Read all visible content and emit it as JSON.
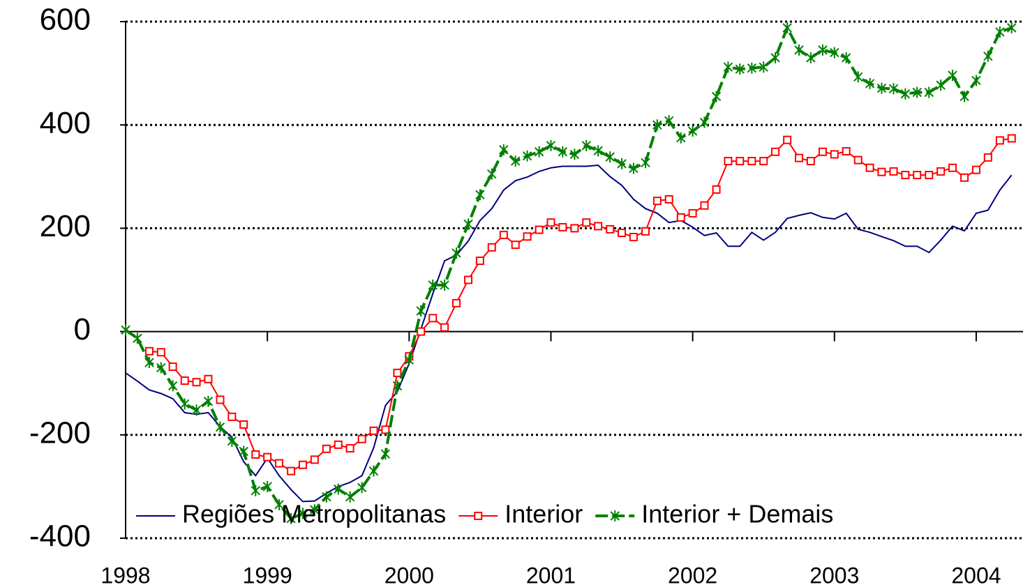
{
  "chart_data": {
    "type": "line",
    "x": [
      1998,
      1998.083,
      1998.167,
      1998.25,
      1998.333,
      1998.417,
      1998.5,
      1998.583,
      1998.667,
      1998.75,
      1998.833,
      1998.917,
      1999,
      1999.083,
      1999.167,
      1999.25,
      1999.333,
      1999.417,
      1999.5,
      1999.583,
      1999.667,
      1999.75,
      1999.833,
      1999.917,
      2000,
      2000.083,
      2000.167,
      2000.25,
      2000.333,
      2000.417,
      2000.5,
      2000.583,
      2000.667,
      2000.75,
      2000.833,
      2000.917,
      2001,
      2001.083,
      2001.167,
      2001.25,
      2001.333,
      2001.417,
      2001.5,
      2001.583,
      2001.667,
      2001.75,
      2001.833,
      2001.917,
      2002,
      2002.083,
      2002.167,
      2002.25,
      2002.333,
      2002.417,
      2002.5,
      2002.583,
      2002.667,
      2002.75,
      2002.833,
      2002.917,
      2003,
      2003.083,
      2003.167,
      2003.25,
      2003.333,
      2003.417,
      2003.5,
      2003.583,
      2003.667,
      2003.75,
      2003.833,
      2003.917,
      2004,
      2004.083,
      2004.167,
      2004.25
    ],
    "series": [
      {
        "name": "Regiões Metropolitanas",
        "color": "#000080",
        "style": "solid",
        "marker": "none",
        "values": [
          -80,
          -96,
          -113,
          -120,
          -130,
          -157,
          -160,
          -157,
          -184,
          -205,
          -252,
          -279,
          -245,
          -279,
          -306,
          -329,
          -328,
          -313,
          -300,
          -292,
          -279,
          -225,
          -143,
          -116,
          -62,
          5,
          73,
          137,
          148,
          175,
          215,
          238,
          274,
          292,
          299,
          310,
          317,
          320,
          320,
          320,
          322,
          300,
          283,
          256,
          238,
          229,
          211,
          215,
          202,
          186,
          191,
          165,
          165,
          192,
          177,
          192,
          219,
          225,
          230,
          221,
          218,
          229,
          198,
          192,
          184,
          176,
          165,
          165,
          153,
          177,
          204,
          195,
          229,
          235,
          274,
          303
        ]
      },
      {
        "name": "Interior",
        "color": "#ff0000",
        "style": "solid",
        "marker": "square",
        "values": [
          null,
          null,
          -38,
          -40,
          -68,
          -95,
          -98,
          -92,
          -132,
          -165,
          -180,
          -238,
          -243,
          -255,
          -270,
          -258,
          -248,
          -227,
          -219,
          -226,
          -208,
          -192,
          -190,
          -80,
          -48,
          0,
          26,
          8,
          55,
          100,
          137,
          163,
          187,
          168,
          184,
          197,
          211,
          202,
          200,
          211,
          204,
          198,
          191,
          183,
          194,
          253,
          256,
          221,
          229,
          244,
          275,
          330,
          330,
          330,
          330,
          348,
          371,
          336,
          330,
          348,
          343,
          349,
          332,
          317,
          309,
          310,
          303,
          303,
          303,
          310,
          317,
          298,
          313,
          337,
          370,
          374
        ]
      },
      {
        "name": "Interior + Demais",
        "color": "#008000",
        "style": "dashed",
        "marker": "star",
        "values": [
          3,
          -13,
          -60,
          -70,
          -105,
          -140,
          -152,
          -135,
          -185,
          -212,
          -232,
          -308,
          -300,
          -335,
          -362,
          -352,
          -345,
          -320,
          -305,
          -320,
          -302,
          -270,
          -237,
          -105,
          -55,
          40,
          90,
          90,
          152,
          208,
          265,
          305,
          352,
          330,
          340,
          348,
          360,
          348,
          343,
          360,
          350,
          338,
          325,
          316,
          327,
          400,
          408,
          375,
          388,
          405,
          455,
          512,
          508,
          510,
          512,
          530,
          588,
          545,
          530,
          545,
          540,
          530,
          493,
          480,
          471,
          470,
          460,
          463,
          463,
          477,
          496,
          455,
          486,
          533,
          580,
          588
        ]
      }
    ],
    "xlim": [
      1998,
      2004.33
    ],
    "xticks": [
      1998,
      1999,
      2000,
      2001,
      2002,
      2003,
      2004
    ],
    "ylim": [
      -400,
      600
    ],
    "yticks": [
      -400,
      -200,
      0,
      200,
      400,
      600
    ],
    "grid": true,
    "legend": "bottom"
  }
}
